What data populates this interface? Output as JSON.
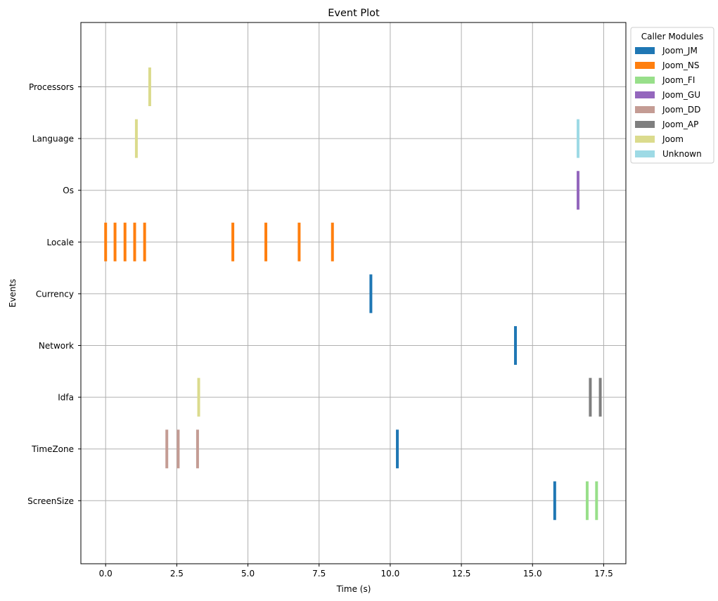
{
  "chart_data": {
    "type": "event",
    "title": "Event Plot",
    "xlabel": "Time (s)",
    "ylabel": "Events",
    "xlim": [
      -0.87,
      18.28
    ],
    "x_ticks": [
      0.0,
      2.5,
      5.0,
      7.5,
      10.0,
      12.5,
      15.0,
      17.5
    ],
    "x_tick_labels": [
      "0.0",
      "2.5",
      "5.0",
      "7.5",
      "10.0",
      "12.5",
      "15.0",
      "17.5"
    ],
    "grid": true,
    "categories": [
      "Processors",
      "Language",
      "Os",
      "Locale",
      "Currency",
      "Network",
      "Idfa",
      "TimeZone",
      "ScreenSize"
    ],
    "legend": {
      "title": "Caller Modules",
      "placement": "outside right, top",
      "entries": [
        {
          "name": "Joom_JM",
          "color": "#1f77b4"
        },
        {
          "name": "Joom_NS",
          "color": "#ff7f0e"
        },
        {
          "name": "Joom_FI",
          "color": "#98df8a"
        },
        {
          "name": "Joom_GU",
          "color": "#9467bd"
        },
        {
          "name": "Joom_DD",
          "color": "#c49c94"
        },
        {
          "name": "Joom_AP",
          "color": "#7f7f7f"
        },
        {
          "name": "Joom",
          "color": "#dbdb8d"
        },
        {
          "name": "Unknown",
          "color": "#9edae5"
        }
      ]
    },
    "events": [
      {
        "category": "Processors",
        "module": "Joom",
        "times": [
          1.55
        ]
      },
      {
        "category": "Language",
        "module": "Joom",
        "times": [
          1.08
        ]
      },
      {
        "category": "Language",
        "module": "Unknown",
        "times": [
          16.6
        ]
      },
      {
        "category": "Os",
        "module": "Joom_GU",
        "times": [
          16.6
        ]
      },
      {
        "category": "Locale",
        "module": "Joom_NS",
        "times": [
          0.0,
          0.33,
          0.68,
          1.02,
          1.37,
          4.47,
          5.63,
          6.8,
          7.97
        ]
      },
      {
        "category": "Currency",
        "module": "Joom_JM",
        "times": [
          9.32
        ]
      },
      {
        "category": "Network",
        "module": "Joom_JM",
        "times": [
          14.4
        ]
      },
      {
        "category": "Idfa",
        "module": "Joom",
        "times": [
          3.27
        ]
      },
      {
        "category": "Idfa",
        "module": "Joom_AP",
        "times": [
          17.03,
          17.38
        ]
      },
      {
        "category": "TimeZone",
        "module": "Joom_DD",
        "times": [
          2.15,
          2.55,
          3.23
        ]
      },
      {
        "category": "TimeZone",
        "module": "Joom_JM",
        "times": [
          10.25
        ]
      },
      {
        "category": "ScreenSize",
        "module": "Joom_JM",
        "times": [
          15.78
        ]
      },
      {
        "category": "ScreenSize",
        "module": "Joom_FI",
        "times": [
          16.92,
          17.25
        ]
      }
    ]
  }
}
